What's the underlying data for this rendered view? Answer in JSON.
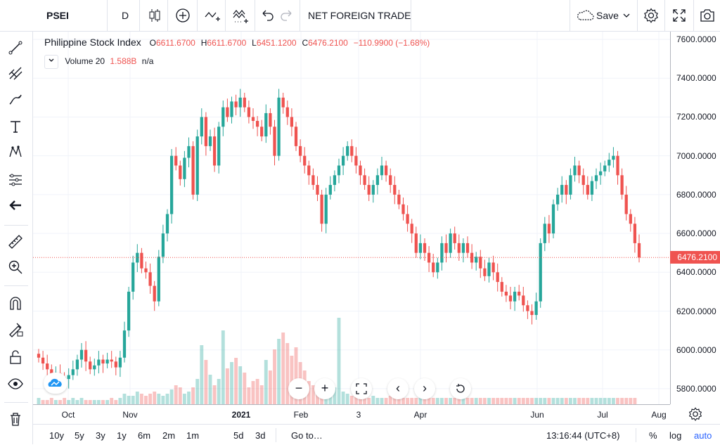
{
  "toolbar": {
    "symbol": "PSEI",
    "interval": "D",
    "indicator_button": "NET FOREIGN TRADE",
    "save_label": "Save"
  },
  "legend": {
    "title": "Philippine Stock Index",
    "o_label": "O",
    "o_value": "6611.6700",
    "h_label": "H",
    "h_value": "6611.6700",
    "l_label": "L",
    "l_value": "6451.1200",
    "c_label": "C",
    "c_value": "6476.2100",
    "change": "−110.9900 (−1.68%)",
    "volume_label": "Volume 20",
    "volume_value": "1.588B",
    "volume_ma": "n/a"
  },
  "last_price_label": "6476.2100",
  "bottom": {
    "ranges": [
      "10y",
      "5y",
      "3y",
      "1y",
      "6m",
      "2m",
      "1m",
      "5d",
      "3d"
    ],
    "goto": "Go to…",
    "time": "13:16:44 (UTC+8)",
    "percent": "%",
    "log": "log",
    "auto": "auto"
  },
  "colors": {
    "up": "#26a69a",
    "down": "#ef5350",
    "accent": "#2962ff"
  },
  "chart_data": {
    "type": "candlestick",
    "title": "Philippine Stock Index",
    "y_ticks": [
      "7600.0000",
      "7400.0000",
      "7200.0000",
      "7000.0000",
      "6800.0000",
      "6600.0000",
      "6400.0000",
      "6200.0000",
      "6000.0000",
      "5800.0000"
    ],
    "ylim": [
      5720,
      7640
    ],
    "x_ticks": [
      "Oct",
      "Nov",
      "2021",
      "Feb",
      "3",
      "Apr",
      "Jun",
      "Jul",
      "Aug"
    ],
    "grid": true,
    "last_price": 6476.21,
    "series": [
      {
        "name": "PSEI",
        "values": [
          5960,
          5930,
          5900,
          5870,
          5880,
          5860,
          5850,
          5870,
          5900,
          5950,
          6000,
          5940,
          5900,
          5920,
          5950,
          5930,
          5950,
          5940,
          5910,
          5960,
          6100,
          6300,
          6450,
          6500,
          6420,
          6400,
          6330,
          6250,
          6480,
          6600,
          6700,
          7000,
          6950,
          6880,
          6990,
          7050,
          6800,
          7100,
          7200,
          7050,
          7100,
          6950,
          7150,
          7250,
          7200,
          7280,
          7250,
          7300,
          7250,
          7200,
          7180,
          7150,
          7100,
          7220,
          7150,
          7000,
          7300,
          7250,
          7200,
          7150,
          7050,
          7000,
          6950,
          6900,
          6850,
          6800,
          6650,
          6800,
          6850,
          6900,
          6950,
          7000,
          7050,
          7000,
          6950,
          6900,
          6850,
          6800,
          6850,
          6900,
          6950,
          6900,
          6850,
          6800,
          6750,
          6700,
          6650,
          6600,
          6500,
          6550,
          6500,
          6450,
          6400,
          6450,
          6550,
          6500,
          6600,
          6550,
          6500,
          6550,
          6500,
          6450,
          6480,
          6420,
          6380,
          6450,
          6400,
          6350,
          6300,
          6280,
          6250,
          6300,
          6280,
          6230,
          6200,
          6180,
          6250,
          6550,
          6650,
          6600,
          6750,
          6800,
          6850,
          6800,
          6900,
          6950,
          6900,
          6850,
          6800,
          6870,
          6900,
          6920,
          6950,
          6980,
          7000,
          6900,
          6800,
          6700,
          6650,
          6550,
          6476
        ]
      },
      {
        "name": "Volume 20",
        "values": [
          0.3,
          0.2,
          0.2,
          0.3,
          0.2,
          0.2,
          0.3,
          0.2,
          0.3,
          0.2,
          0.3,
          0.2,
          0.2,
          0.2,
          0.2,
          0.2,
          0.2,
          0.3,
          0.2,
          0.3,
          0.5,
          0.4,
          0.4,
          0.6,
          0.5,
          0.4,
          0.5,
          0.6,
          0.5,
          0.4,
          0.5,
          0.7,
          0.9,
          0.8,
          0.5,
          0.6,
          0.8,
          1.2,
          2.8,
          2.1,
          1.4,
          0.9,
          1.2,
          3.5,
          1.7,
          2.0,
          2.2,
          1.8,
          1.5,
          0.8,
          1.1,
          1.2,
          0.9,
          2.1,
          1.6,
          2.6,
          3.1,
          3.4,
          2.9,
          2.3,
          2.7,
          2.0,
          1.6,
          1.1,
          0.9,
          0.8,
          0.6,
          0.9,
          0.7,
          0.8,
          4.1,
          0.6,
          0.5,
          0.4,
          0.5,
          0.4,
          0.3,
          0.3,
          0.4,
          0.3,
          0.3,
          0.3,
          0.4,
          0.3,
          0.3,
          0.3,
          0.3,
          0.3,
          0.3,
          0.3,
          0.3,
          0.3,
          0.3,
          0.3,
          0.3,
          0.3,
          0.3,
          0.3,
          0.3,
          0.3,
          0.3,
          0.3,
          0.3,
          0.3,
          0.3,
          0.3,
          0.3,
          0.3,
          0.3,
          0.3,
          0.3,
          0.3,
          0.3,
          0.3,
          0.3,
          0.3,
          0.3,
          0.3,
          0.3,
          0.3,
          0.3,
          0.3,
          0.3,
          0.3,
          0.3,
          0.3,
          0.3,
          0.3,
          0.3,
          0.3,
          0.3,
          0.3,
          0.3,
          0.3,
          0.3,
          0.3,
          0.3,
          0.3,
          0.3,
          0.3
        ]
      }
    ]
  }
}
